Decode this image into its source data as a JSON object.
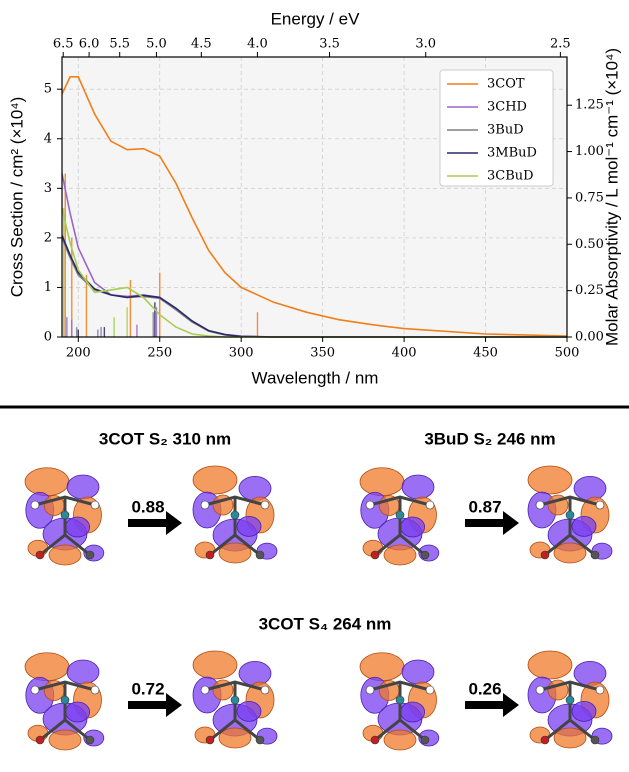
{
  "chart_data": {
    "type": "line",
    "x_label": "Wavelength / nm",
    "x2_label": "Energy / eV",
    "y_label": "Cross Section / cm² (×10⁴)",
    "y2_label": "Molar Absorptivity / L mol⁻¹ cm⁻¹ (×10⁴)",
    "x": [
      190,
      195,
      200,
      210,
      220,
      230,
      240,
      250,
      260,
      270,
      280,
      290,
      300,
      320,
      340,
      360,
      380,
      400,
      450,
      500
    ],
    "xlim": [
      190,
      500
    ],
    "xticks": [
      200,
      250,
      300,
      350,
      400,
      450,
      500
    ],
    "x2ticks": [
      6.5,
      {
        "value": 6,
        "label": "6.0"
      },
      5.5,
      {
        "value": 5,
        "label": "5.0"
      },
      4.5,
      {
        "value": 4,
        "label": "4.0"
      },
      3.5,
      {
        "value": 3,
        "label": "3.0"
      },
      2.5
    ],
    "ylim": [
      0,
      5.65
    ],
    "yticks": [
      0,
      1,
      2,
      3,
      4,
      5
    ],
    "y2lim": [
      0,
      1.51
    ],
    "y2ticks": [
      {
        "value": 0,
        "label": "0.00"
      },
      0.25,
      {
        "value": 0.5,
        "label": "0.50"
      },
      0.75,
      {
        "value": 1,
        "label": "1.00"
      },
      1.25
    ],
    "grid": true,
    "legend": "upper right",
    "series": [
      {
        "name": "3COT",
        "color": "#f07f1a",
        "values": [
          4.9,
          5.25,
          5.25,
          4.5,
          3.95,
          3.78,
          3.8,
          3.65,
          3.1,
          2.4,
          1.75,
          1.3,
          1.0,
          0.7,
          0.5,
          0.35,
          0.25,
          0.17,
          0.06,
          0.02
        ],
        "sticks": {
          "x": [
            192,
            196,
            205,
            232,
            250,
            310
          ],
          "values": [
            3.3,
            2.0,
            1.25,
            1.15,
            1.3,
            0.5
          ]
        }
      },
      {
        "name": "3CHD",
        "color": "#9966cc",
        "values": [
          3.3,
          2.5,
          1.8,
          1.1,
          0.85,
          0.82,
          0.85,
          0.8,
          0.55,
          0.3,
          0.13,
          0.05,
          0.02,
          0,
          0,
          0,
          0,
          0,
          0,
          0
        ],
        "sticks": {
          "x": [
            193,
            196,
            212,
            236,
            248
          ],
          "values": [
            0.4,
            0.35,
            0.15,
            0.25,
            0.6
          ]
        }
      },
      {
        "name": "3BuD",
        "color": "#808080",
        "values": [
          2.0,
          1.6,
          1.25,
          0.95,
          0.85,
          0.8,
          0.82,
          0.78,
          0.55,
          0.3,
          0.12,
          0.04,
          0.01,
          0,
          0,
          0,
          0,
          0,
          0,
          0
        ],
        "sticks": {
          "x": [
            199,
            214,
            246
          ],
          "values": [
            0.2,
            0.2,
            0.5
          ]
        }
      },
      {
        "name": "3MBuD",
        "color": "#2a2a6a",
        "values": [
          2.05,
          1.65,
          1.3,
          0.97,
          0.85,
          0.8,
          0.84,
          0.8,
          0.58,
          0.32,
          0.13,
          0.05,
          0.01,
          0,
          0,
          0,
          0,
          0,
          0,
          0
        ],
        "sticks": {
          "x": [
            200,
            216,
            247
          ],
          "values": [
            0.15,
            0.2,
            0.7
          ]
        }
      },
      {
        "name": "3CBuD",
        "color": "#a8cc50",
        "values": [
          2.6,
          1.9,
          1.35,
          0.9,
          0.95,
          1.0,
          0.8,
          0.45,
          0.2,
          0.06,
          0.02,
          0,
          0,
          0,
          0,
          0,
          0,
          0,
          0,
          0
        ],
        "sticks": {
          "x": [
            191,
            222,
            230
          ],
          "values": [
            2.6,
            0.4,
            0.6
          ]
        }
      }
    ]
  },
  "panels": [
    {
      "title": "3COT S₂ 310 nm",
      "weight": "0.88"
    },
    {
      "title": "3BuD S₂ 246 nm",
      "weight": "0.87"
    },
    {
      "title": "3COT S₄ 264 nm",
      "weights": [
        "0.72",
        "0.26"
      ]
    }
  ]
}
